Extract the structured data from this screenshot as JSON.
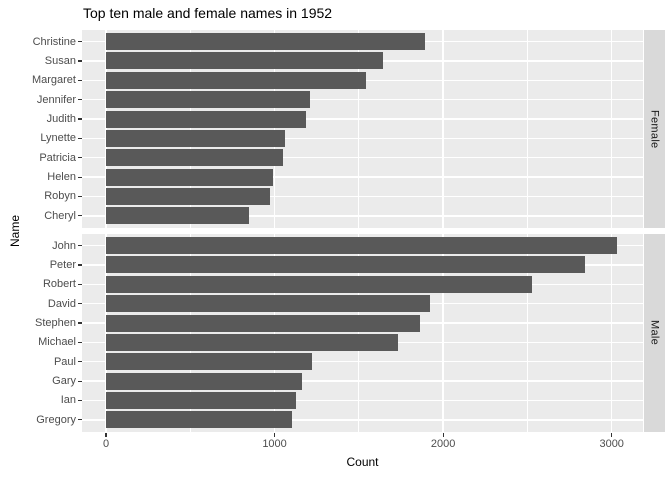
{
  "chart_data": {
    "type": "bar",
    "orientation": "horizontal",
    "title": "Top ten male and female names in 1952",
    "xlabel": "Count",
    "ylabel": "Name",
    "x_ticks": [
      0,
      1000,
      2000,
      3000
    ],
    "x_minor_ticks": [
      500,
      1500,
      2500
    ],
    "xlim": [
      -150,
      3200
    ],
    "legend": "none",
    "grid": "white major/minor vertical lines and one white line per category row on gray panel",
    "facets": [
      {
        "label": "Female",
        "categories": [
          "Christine",
          "Susan",
          "Margaret",
          "Jennifer",
          "Judith",
          "Lynette",
          "Patricia",
          "Helen",
          "Robyn",
          "Cheryl"
        ],
        "values": [
          1895,
          1645,
          1540,
          1210,
          1185,
          1060,
          1050,
          990,
          970,
          850
        ]
      },
      {
        "label": "Male",
        "categories": [
          "John",
          "Peter",
          "Robert",
          "David",
          "Stephen",
          "Michael",
          "Paul",
          "Gary",
          "Ian",
          "Gregory"
        ],
        "values": [
          3030,
          2840,
          2530,
          1920,
          1860,
          1730,
          1225,
          1160,
          1130,
          1105
        ]
      }
    ],
    "colors": {
      "bar": "#595959",
      "panel_bg": "#EBEBEB",
      "strip_bg": "#D9D9D9",
      "grid": "#FFFFFF",
      "axis_text": "#4D4D4D",
      "tick_mark": "#333333",
      "strip_text": "#1A1A1A",
      "title": "#000000"
    }
  }
}
